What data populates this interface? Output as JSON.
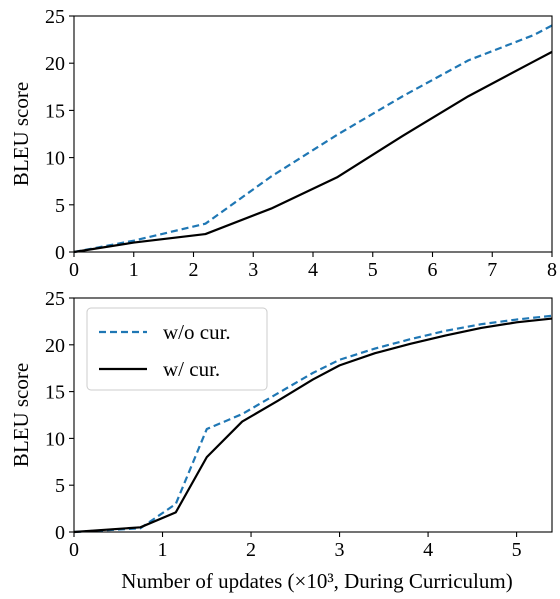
{
  "chart_data": [
    {
      "type": "line",
      "ylabel": "BLEU score",
      "xlabel": "",
      "xlim": [
        0,
        8
      ],
      "ylim": [
        0,
        25
      ],
      "xticks": [
        "0",
        "1",
        "2",
        "3",
        "4",
        "5",
        "6",
        "7",
        "8"
      ],
      "yticks": [
        "0",
        "5",
        "10",
        "15",
        "20",
        "25"
      ],
      "grid": false,
      "legend": "none",
      "series": [
        {
          "name": "w/o cur.",
          "color": "#1f77b4",
          "style": "dashed",
          "x": [
            0,
            1,
            2.2,
            3.3,
            4.4,
            5.5,
            6.6,
            7.7,
            8
          ],
          "y": [
            0,
            1.2,
            3.0,
            8.0,
            12.4,
            16.5,
            20.3,
            23.0,
            24.0
          ]
        },
        {
          "name": "w/ cur.",
          "color": "#000000",
          "style": "solid",
          "x": [
            0,
            1,
            2.2,
            3.3,
            4.4,
            5.5,
            6.6,
            7.7,
            8
          ],
          "y": [
            0,
            1.0,
            1.9,
            4.6,
            7.9,
            12.3,
            16.5,
            20.2,
            21.2
          ]
        }
      ]
    },
    {
      "type": "line",
      "ylabel": "BLEU score",
      "xlabel": "Number of updates (×10³, During Curriculum)",
      "xlim": [
        0,
        5.4
      ],
      "ylim": [
        0,
        25
      ],
      "xticks": [
        "0",
        "1",
        "2",
        "3",
        "4",
        "5"
      ],
      "yticks": [
        "0",
        "5",
        "10",
        "15",
        "20",
        "25"
      ],
      "grid": false,
      "legend": "upper-left",
      "series": [
        {
          "name": "w/o cur.",
          "color": "#1f77b4",
          "style": "dashed",
          "x": [
            0,
            0.75,
            1.15,
            1.5,
            1.9,
            2.3,
            2.7,
            3.0,
            3.4,
            3.8,
            4.2,
            4.6,
            5.0,
            5.4
          ],
          "y": [
            0,
            0.4,
            3.0,
            11.0,
            12.6,
            14.8,
            17.0,
            18.4,
            19.6,
            20.6,
            21.5,
            22.2,
            22.7,
            23.1
          ]
        },
        {
          "name": "w/ cur.",
          "color": "#000000",
          "style": "solid",
          "x": [
            0,
            0.75,
            1.15,
            1.5,
            1.9,
            2.3,
            2.7,
            3.0,
            3.4,
            3.8,
            4.2,
            4.6,
            5.0,
            5.4
          ],
          "y": [
            0,
            0.5,
            2.1,
            8.0,
            11.8,
            14.0,
            16.3,
            17.8,
            19.1,
            20.1,
            21.0,
            21.8,
            22.4,
            22.8
          ]
        }
      ]
    }
  ]
}
